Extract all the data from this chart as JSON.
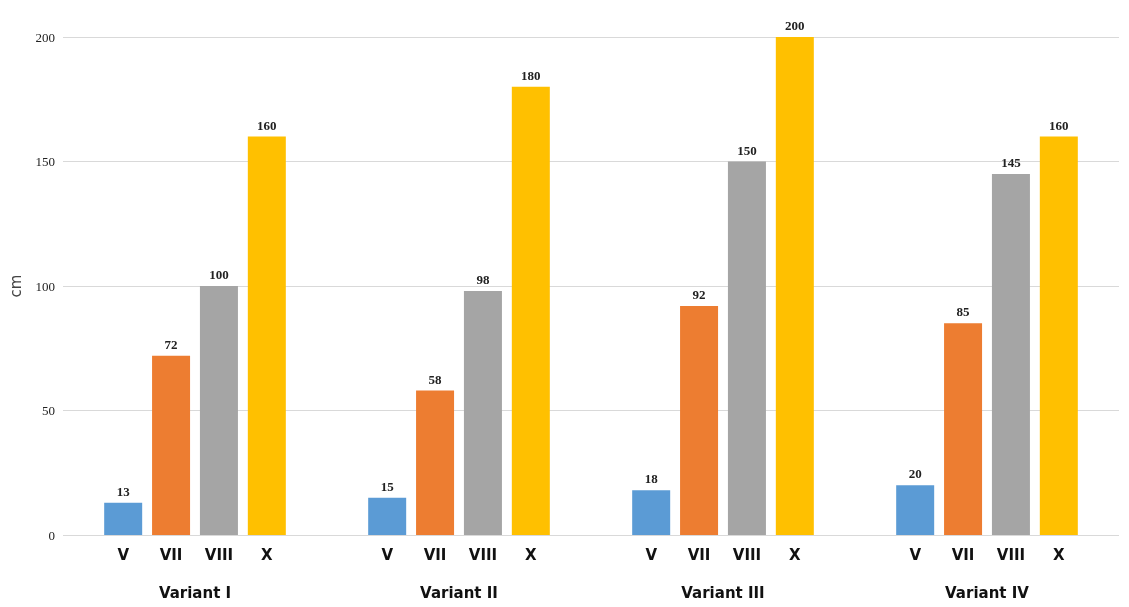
{
  "chart_data": {
    "type": "bar",
    "ylabel": "cm",
    "categories": [
      "Variant I",
      "Variant II",
      "Variant III",
      "Variant IV"
    ],
    "series": [
      {
        "name": "V",
        "color": "#5b9bd5",
        "values": [
          13,
          15,
          18,
          20
        ]
      },
      {
        "name": "VII",
        "color": "#ed7d31",
        "values": [
          72,
          58,
          92,
          85
        ]
      },
      {
        "name": "VIII",
        "color": "#a5a5a5",
        "values": [
          100,
          98,
          150,
          145
        ]
      },
      {
        "name": "X",
        "color": "#ffc000",
        "values": [
          160,
          180,
          200,
          160
        ]
      }
    ],
    "ylim": [
      0,
      200
    ],
    "yticks": [
      0,
      50,
      100,
      150,
      200
    ],
    "grid": "y",
    "data_labels": true,
    "legend": false
  }
}
